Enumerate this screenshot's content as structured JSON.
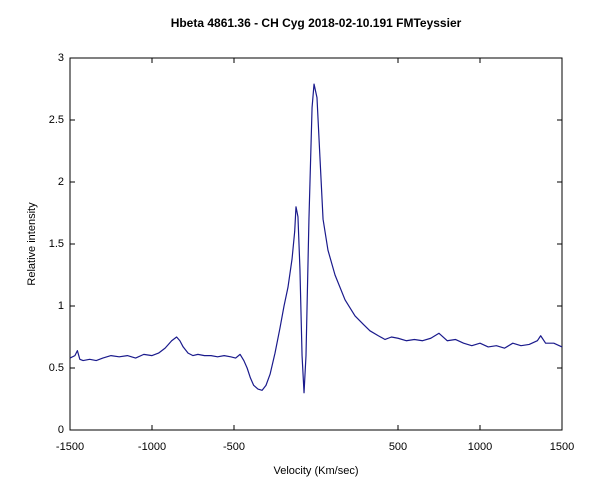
{
  "chart_data": {
    "type": "line",
    "title": "Hbeta 4861.36 - CH Cyg   2018-02-10.191     FMTeyssier",
    "x_label": "Velocity (Km/sec)",
    "y_label": "Relative intensity",
    "xlim": [
      -1500,
      1500
    ],
    "ylim": [
      0,
      3
    ],
    "xticks": [
      -1500,
      -1000,
      -500,
      500,
      1000,
      1500
    ],
    "yticks": [
      0,
      0.5,
      1,
      1.5,
      2,
      2.5,
      3
    ],
    "grid": false,
    "series": [
      {
        "name": "Hbeta",
        "color": "#1a1a8c",
        "x": [
          -1500,
          -1470,
          -1455,
          -1440,
          -1420,
          -1380,
          -1340,
          -1300,
          -1250,
          -1200,
          -1150,
          -1100,
          -1050,
          -1000,
          -960,
          -920,
          -880,
          -850,
          -830,
          -810,
          -780,
          -750,
          -720,
          -680,
          -640,
          -600,
          -560,
          -520,
          -490,
          -463,
          -440,
          -420,
          -400,
          -380,
          -354,
          -329,
          -305,
          -280,
          -250,
          -220,
          -195,
          -171,
          -146,
          -130,
          -122,
          -110,
          -98,
          -85,
          -73,
          -61,
          -43,
          -24,
          -12,
          6,
          24,
          43,
          73,
          116,
          177,
          238,
          290,
          329,
          380,
          421,
          460,
          500,
          550,
          600,
          650,
          700,
          750,
          800,
          850,
          900,
          950,
          1000,
          1050,
          1100,
          1150,
          1200,
          1250,
          1300,
          1350,
          1370,
          1400,
          1450,
          1500
        ],
        "values": [
          0.58,
          0.6,
          0.64,
          0.57,
          0.56,
          0.57,
          0.56,
          0.58,
          0.6,
          0.59,
          0.6,
          0.58,
          0.61,
          0.6,
          0.62,
          0.66,
          0.72,
          0.75,
          0.72,
          0.67,
          0.62,
          0.6,
          0.61,
          0.6,
          0.6,
          0.59,
          0.6,
          0.59,
          0.58,
          0.61,
          0.56,
          0.5,
          0.42,
          0.36,
          0.33,
          0.32,
          0.36,
          0.45,
          0.62,
          0.82,
          1.0,
          1.15,
          1.38,
          1.6,
          1.8,
          1.72,
          1.3,
          0.6,
          0.3,
          0.6,
          1.7,
          2.6,
          2.79,
          2.68,
          2.2,
          1.7,
          1.45,
          1.25,
          1.05,
          0.92,
          0.85,
          0.8,
          0.76,
          0.73,
          0.75,
          0.74,
          0.72,
          0.73,
          0.72,
          0.74,
          0.78,
          0.72,
          0.73,
          0.7,
          0.68,
          0.7,
          0.67,
          0.68,
          0.66,
          0.7,
          0.68,
          0.69,
          0.72,
          0.76,
          0.7,
          0.7,
          0.67
        ]
      }
    ]
  }
}
